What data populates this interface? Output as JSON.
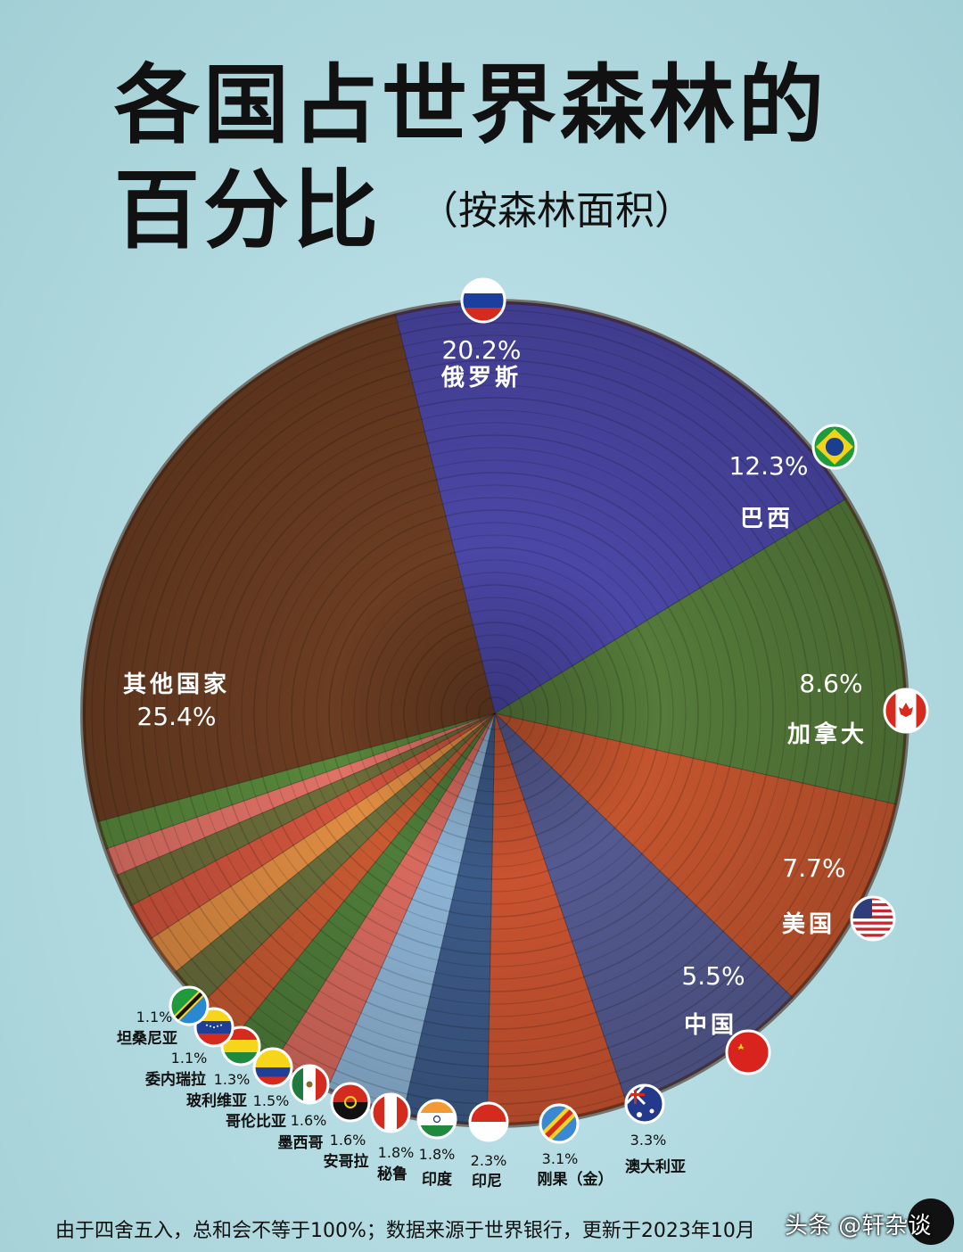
{
  "title": {
    "line1": "各国占世界森林的",
    "line2": "百分比",
    "subtitle": "（按森林面积）"
  },
  "footnote": "由于四舍五入，总和会不等于100%；数据来源于世界银行，更新于2023年10月",
  "watermark": "头条 @轩杂谈",
  "chart_data": {
    "type": "pie",
    "title": "各国占世界森林的百分比（按森林面积）",
    "unit": "%",
    "slices": [
      {
        "label": "俄罗斯",
        "value": 20.2,
        "value_text": "20.2%",
        "color": "#4b47a6",
        "flag": "flag-russia"
      },
      {
        "label": "巴西",
        "value": 12.3,
        "value_text": "12.3%",
        "color": "#557a3a",
        "flag": "flag-brazil"
      },
      {
        "label": "加拿大",
        "value": 8.6,
        "value_text": "8.6%",
        "color": "#c4552e",
        "flag": "flag-canada"
      },
      {
        "label": "美国",
        "value": 7.7,
        "value_text": "7.7%",
        "color": "#545a90",
        "flag": "flag-usa"
      },
      {
        "label": "中国",
        "value": 5.5,
        "value_text": "5.5%",
        "color": "#c95330",
        "flag": "flag-china"
      },
      {
        "label": "澳大利亚",
        "value": 3.3,
        "value_text": "3.3%",
        "color": "#3c5a88",
        "flag": "flag-australia"
      },
      {
        "label": "刚果（金）",
        "value": 3.1,
        "value_text": "3.1%",
        "color": "#8db3d4",
        "flag": "flag-dr-congo"
      },
      {
        "label": "印尼",
        "value": 2.3,
        "value_text": "2.3%",
        "color": "#d86a5e",
        "flag": "flag-indonesia"
      },
      {
        "label": "印度",
        "value": 1.8,
        "value_text": "1.8%",
        "color": "#4f7d3a",
        "flag": "flag-india"
      },
      {
        "label": "秘鲁",
        "value": 1.8,
        "value_text": "1.8%",
        "color": "#c95a32",
        "flag": "flag-peru"
      },
      {
        "label": "安哥拉",
        "value": 1.6,
        "value_text": "1.6%",
        "color": "#6a6f3c",
        "flag": "flag-angola"
      },
      {
        "label": "墨西哥",
        "value": 1.6,
        "value_text": "1.6%",
        "color": "#e08d43",
        "flag": "flag-mexico"
      },
      {
        "label": "哥伦比亚",
        "value": 1.5,
        "value_text": "1.5%",
        "color": "#d2553e",
        "flag": "flag-colombia"
      },
      {
        "label": "玻利维亚",
        "value": 1.3,
        "value_text": "1.3%",
        "color": "#6c6e3a",
        "flag": "flag-bolivia"
      },
      {
        "label": "委内瑞拉",
        "value": 1.1,
        "value_text": "1.1%",
        "color": "#e17266",
        "flag": "flag-venezuela"
      },
      {
        "label": "坦桑尼亚",
        "value": 1.1,
        "value_text": "1.1%",
        "color": "#58873b",
        "flag": "flag-tanzania"
      },
      {
        "label": "其他国家",
        "value": 25.4,
        "value_text": "25.4%",
        "color": "#6b3d22",
        "flag": ""
      }
    ]
  }
}
